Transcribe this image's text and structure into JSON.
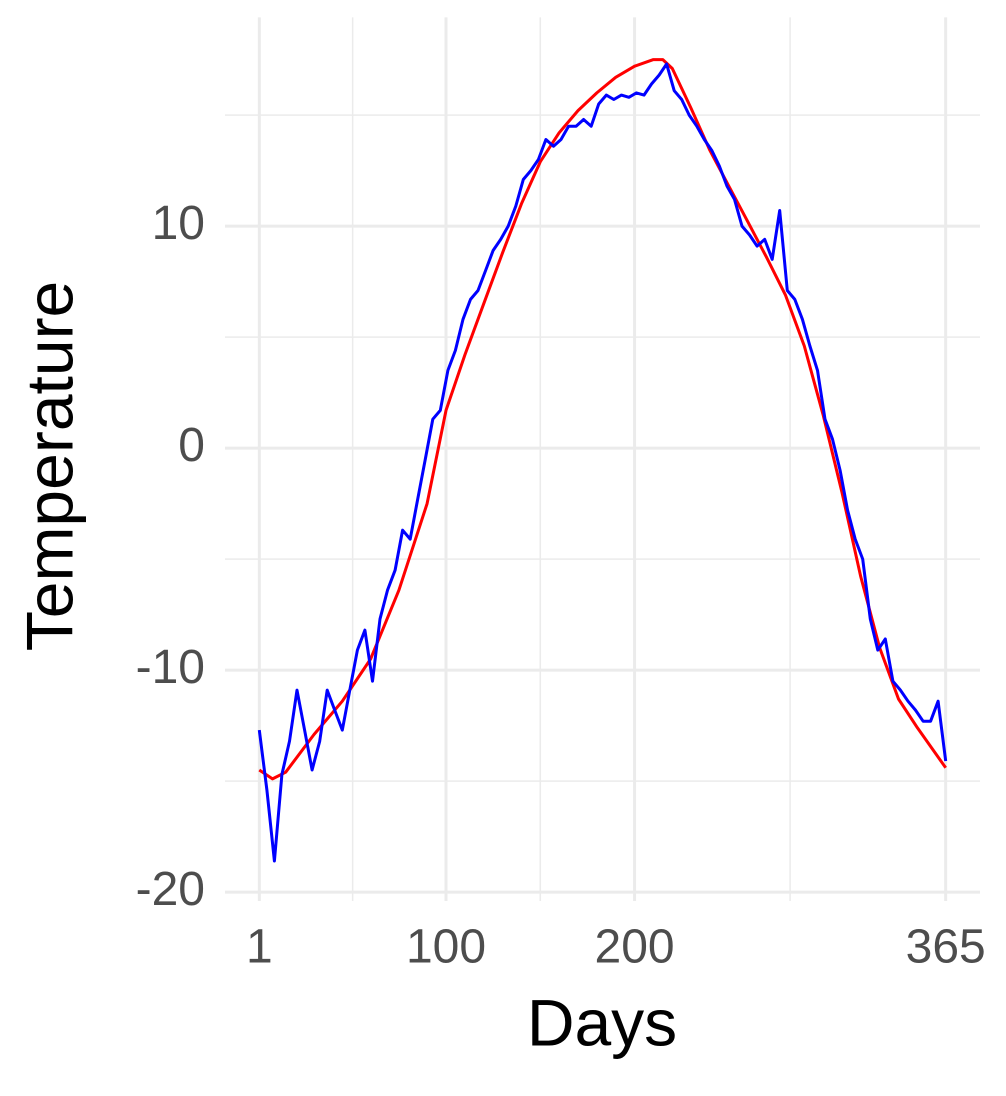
{
  "chart_data": {
    "type": "line",
    "x_label": "Days",
    "y_label": "Temperature",
    "xlim": [
      -17.2,
      383.2
    ],
    "xticks": [
      1,
      100,
      200,
      365
    ],
    "x_minor_gridlines": [
      50.5,
      150,
      282.5
    ],
    "ylim": [
      -20.4,
      19.4
    ],
    "yticks": [
      -20,
      -10,
      0,
      10
    ],
    "y_minor_gridlines": [
      -15,
      -5,
      5,
      15
    ],
    "grid": true,
    "series": [
      {
        "color": "#ff0000",
        "x": [
          1,
          8,
          15,
          30,
          45,
          60,
          75,
          90,
          100,
          110,
          120,
          130,
          140,
          150,
          160,
          170,
          180,
          190,
          200,
          210,
          215,
          220,
          230,
          240,
          250,
          260,
          270,
          280,
          290,
          300,
          310,
          320,
          330,
          340,
          350,
          360,
          365
        ],
        "values": [
          -14.5,
          -14.9,
          -14.6,
          -12.9,
          -11.4,
          -9.5,
          -6.4,
          -2.5,
          1.7,
          4.2,
          6.5,
          8.8,
          11.0,
          12.9,
          14.2,
          15.2,
          16.0,
          16.7,
          17.2,
          17.5,
          17.5,
          17.1,
          15.3,
          13.4,
          11.8,
          10.2,
          8.6,
          6.9,
          4.6,
          1.5,
          -2.0,
          -5.8,
          -9.0,
          -11.3,
          -12.6,
          -13.8,
          -14.4
        ]
      },
      {
        "color": "#0000ff",
        "x": [
          1,
          5,
          9,
          13,
          17,
          21,
          25,
          29,
          33,
          37,
          41,
          45,
          49,
          53,
          57,
          61,
          65,
          69,
          73,
          77,
          81,
          85,
          89,
          93,
          97,
          101,
          105,
          109,
          113,
          117,
          121,
          125,
          129,
          133,
          137,
          141,
          145,
          149,
          153,
          157,
          161,
          165,
          169,
          173,
          177,
          181,
          185,
          189,
          193,
          197,
          201,
          205,
          209,
          213,
          217,
          221,
          225,
          229,
          233,
          237,
          241,
          245,
          249,
          253,
          257,
          261,
          265,
          269,
          273,
          277,
          281,
          285,
          289,
          293,
          297,
          301,
          305,
          309,
          313,
          317,
          321,
          325,
          329,
          333,
          337,
          341,
          345,
          349,
          353,
          357,
          361,
          365
        ],
        "values": [
          -12.7,
          -15.4,
          -18.6,
          -14.7,
          -13.2,
          -10.9,
          -12.7,
          -14.5,
          -13.2,
          -10.9,
          -11.8,
          -12.7,
          -10.9,
          -9.1,
          -8.2,
          -10.5,
          -7.7,
          -6.4,
          -5.5,
          -3.7,
          -4.1,
          -2.3,
          -0.5,
          1.3,
          1.7,
          3.5,
          4.4,
          5.8,
          6.7,
          7.1,
          8.0,
          8.9,
          9.4,
          10.0,
          10.9,
          12.1,
          12.5,
          13.0,
          13.9,
          13.6,
          13.9,
          14.5,
          14.5,
          14.8,
          14.5,
          15.5,
          15.9,
          15.7,
          15.9,
          15.8,
          16.0,
          15.9,
          16.4,
          16.8,
          17.3,
          16.1,
          15.7,
          15.0,
          14.5,
          13.9,
          13.4,
          12.7,
          11.8,
          11.2,
          10.0,
          9.6,
          9.1,
          9.4,
          8.5,
          10.7,
          7.1,
          6.7,
          5.8,
          4.6,
          3.5,
          1.3,
          0.4,
          -1.0,
          -2.8,
          -4.1,
          -5.0,
          -7.7,
          -9.1,
          -8.6,
          -10.5,
          -10.9,
          -11.4,
          -11.8,
          -12.3,
          -12.3,
          -11.4,
          -14.1
        ]
      }
    ]
  }
}
